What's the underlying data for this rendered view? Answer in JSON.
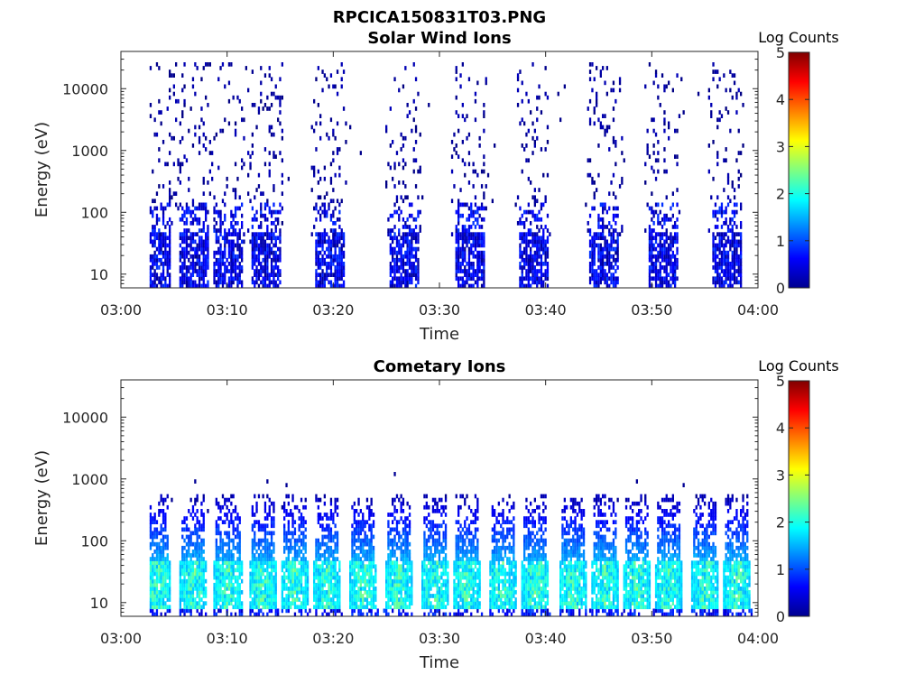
{
  "figure": {
    "title": "RPCICA150831T03.PNG"
  },
  "chart_data": [
    {
      "type": "heatmap",
      "title": "Solar Wind Ions",
      "xlabel": "Time",
      "ylabel": "Energy (eV)",
      "x_ticks": [
        "03:00",
        "03:10",
        "03:20",
        "03:30",
        "03:40",
        "03:50",
        "04:00"
      ],
      "xlim": [
        "03:00",
        "04:00"
      ],
      "y_scale": "log",
      "y_ticks": [
        10,
        100,
        1000,
        10000
      ],
      "y_tick_labels": [
        "10",
        "100",
        "1000",
        "10000"
      ],
      "ylim": [
        6,
        40000
      ],
      "colorbar": {
        "label": "Log Counts",
        "ticks": [
          0,
          1,
          2,
          3,
          4,
          5
        ],
        "range": [
          0,
          5
        ],
        "colormap": "jet"
      },
      "bursts_minutes": [
        3.3,
        6.8,
        10.0,
        13.5,
        19.5,
        26.5,
        32.7,
        38.8,
        45.5,
        51.0,
        57.0
      ],
      "core_energy_eV": [
        6,
        150
      ],
      "core_log_counts": [
        0.1,
        0.9
      ],
      "sparse_energy_eV": [
        30,
        25000
      ],
      "sparse_log_counts": [
        0,
        0.3
      ]
    },
    {
      "type": "heatmap",
      "title": "Cometary Ions",
      "xlabel": "Time",
      "ylabel": "Energy (eV)",
      "x_ticks": [
        "03:00",
        "03:10",
        "03:20",
        "03:30",
        "03:40",
        "03:50",
        "04:00"
      ],
      "xlim": [
        "03:00",
        "04:00"
      ],
      "y_scale": "log",
      "y_ticks": [
        10,
        100,
        1000,
        10000
      ],
      "y_tick_labels": [
        "10",
        "100",
        "1000",
        "10000"
      ],
      "ylim": [
        6,
        40000
      ],
      "colorbar": {
        "label": "Log Counts",
        "ticks": [
          0,
          1,
          2,
          3,
          4,
          5
        ],
        "range": [
          0,
          5
        ],
        "colormap": "jet"
      },
      "bursts_minutes": [
        3.3,
        6.8,
        10.0,
        13.3,
        16.3,
        19.3,
        22.7,
        26.0,
        29.5,
        32.5,
        35.8,
        39.0,
        42.5,
        45.5,
        48.5,
        51.5,
        55.0,
        58.0
      ],
      "core_energy_eV": [
        8,
        45
      ],
      "core_log_counts": [
        1.5,
        2.6
      ],
      "tail_energy_eV": [
        45,
        550
      ],
      "tail_log_counts": [
        0.2,
        1.5
      ]
    }
  ]
}
